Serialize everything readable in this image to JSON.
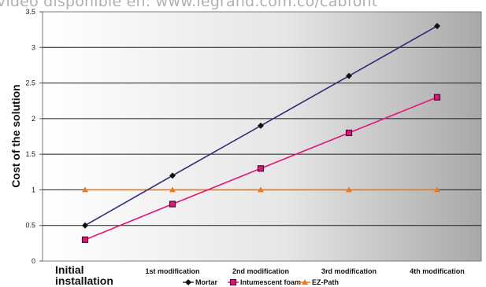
{
  "caption": "video disponible en: www.legrand.com.co/cabfont",
  "chart_data": {
    "type": "line",
    "categories": [
      "Initial installation",
      "1st modification",
      "2nd modification",
      "3rd modification",
      "4th modification"
    ],
    "series": [
      {
        "name": "Mortar",
        "values": [
          0.5,
          1.2,
          1.9,
          2.6,
          3.3
        ],
        "color": "#2e2a78",
        "marker": "diamond",
        "marker_color": "#111111"
      },
      {
        "name": "Intumescent foam",
        "values": [
          0.3,
          0.8,
          1.3,
          1.8,
          2.3
        ],
        "color": "#e0157a",
        "marker": "square",
        "marker_color": "#4a0f2c"
      },
      {
        "name": "EZ-Path",
        "values": [
          1,
          1,
          1,
          1,
          1
        ],
        "color": "#f07818",
        "marker": "triangle",
        "marker_color": "#f07818"
      }
    ],
    "yticks": [
      "0",
      "0.5",
      "1",
      "1.5",
      "2",
      "2.5",
      "3",
      "3.5"
    ],
    "ylim": [
      0,
      3.5
    ],
    "ylabel": "Cost of the solution",
    "xlabel": "",
    "grid": true,
    "legend_position": "bottom",
    "background": "gradient white-to-gray"
  }
}
